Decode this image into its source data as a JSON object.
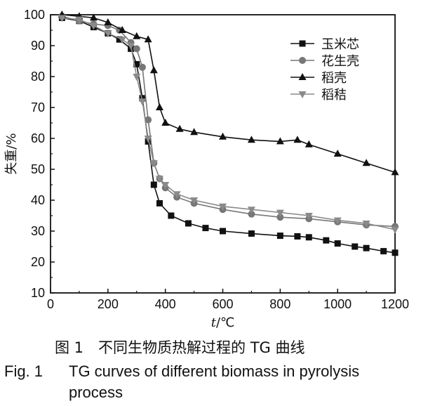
{
  "chart_data": {
    "type": "line",
    "xlabel_italic": "t",
    "xlabel_rest": "/℃",
    "ylabel": "失重/%",
    "xlim": [
      0,
      1200
    ],
    "ylim": [
      10,
      100
    ],
    "xticks": [
      0,
      200,
      400,
      600,
      800,
      1000,
      1200
    ],
    "yticks": [
      10,
      20,
      30,
      40,
      50,
      60,
      70,
      80,
      90,
      100
    ],
    "grid": false,
    "legend_position": "top-right",
    "series": [
      {
        "name": "玉米芯",
        "marker": "square",
        "x": [
          40,
          100,
          150,
          200,
          240,
          280,
          300,
          320,
          340,
          360,
          380,
          420,
          480,
          540,
          600,
          700,
          800,
          860,
          900,
          960,
          1000,
          1060,
          1100,
          1160,
          1200
        ],
        "y": [
          99,
          98,
          96,
          94,
          92,
          89,
          84,
          73,
          59,
          45,
          39,
          35,
          32.5,
          31,
          30,
          29.2,
          28.5,
          28.3,
          28,
          27,
          26,
          25,
          24.5,
          23.5,
          23
        ]
      },
      {
        "name": "花生壳",
        "marker": "circle",
        "x": [
          40,
          100,
          150,
          200,
          240,
          280,
          300,
          320,
          340,
          360,
          380,
          400,
          440,
          500,
          600,
          700,
          800,
          900,
          1000,
          1100,
          1200
        ],
        "y": [
          99.5,
          98,
          97,
          96.5,
          95,
          91,
          89,
          83,
          66,
          52,
          47,
          44,
          41,
          39,
          37,
          35.5,
          34.5,
          34,
          33,
          32,
          31.5
        ]
      },
      {
        "name": "稻壳",
        "marker": "triangle-up",
        "x": [
          40,
          100,
          150,
          200,
          250,
          300,
          340,
          360,
          380,
          400,
          450,
          500,
          600,
          700,
          800,
          860,
          900,
          1000,
          1100,
          1200
        ],
        "y": [
          100,
          99.5,
          99,
          97.5,
          95,
          93,
          92,
          82,
          70,
          65,
          63,
          62,
          60.5,
          59.5,
          59,
          59.5,
          58,
          55,
          52,
          49
        ]
      },
      {
        "name": "稻秸",
        "marker": "triangle-down",
        "x": [
          40,
          100,
          150,
          200,
          250,
          280,
          300,
          320,
          340,
          360,
          380,
          400,
          440,
          500,
          600,
          700,
          800,
          900,
          1000,
          1100,
          1200
        ],
        "y": [
          99,
          98.5,
          96.5,
          94,
          92,
          90,
          80,
          72,
          60,
          52,
          47,
          45,
          42,
          40,
          38,
          37,
          36,
          35,
          33.5,
          32.5,
          30.5
        ]
      }
    ]
  },
  "caption": {
    "zh": "图 1　不同生物质热解过程的 TG 曲线",
    "en_label": "Fig. 1",
    "en_line1": "TG curves of different biomass in pyrolysis",
    "en_line2": "process"
  }
}
